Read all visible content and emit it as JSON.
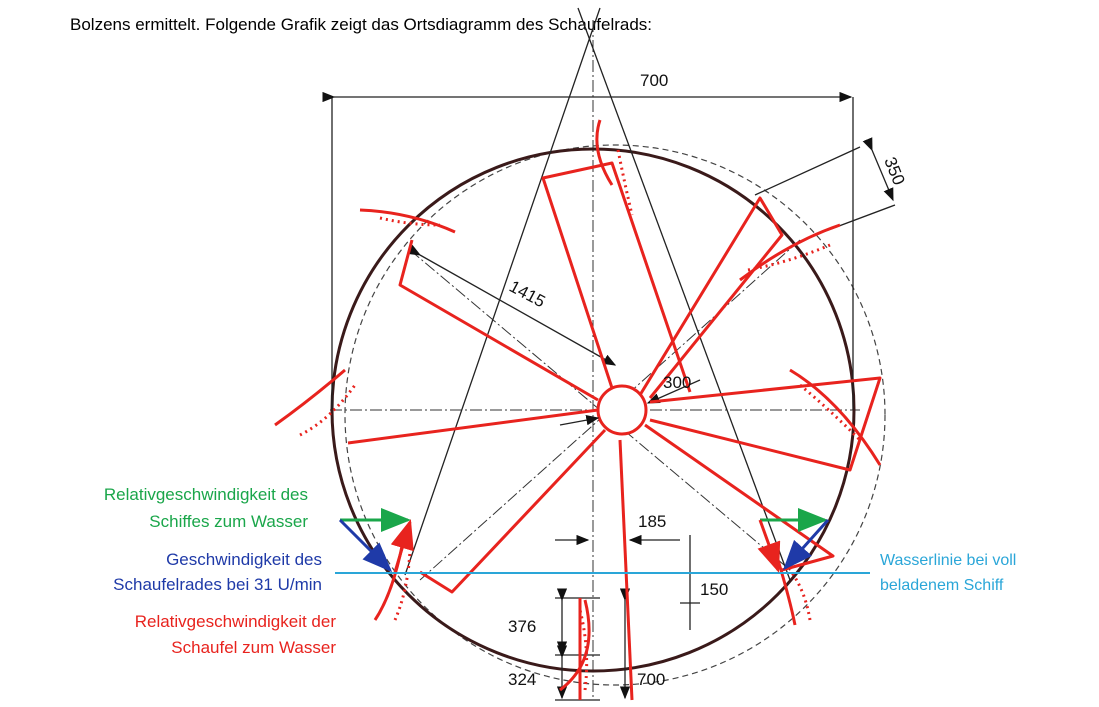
{
  "caption": "Bolzens ermittelt. Folgende Grafik zeigt das Ortsdiagramm des Schaufelrads:",
  "dimensions": {
    "width_top": "700",
    "paddle": "350",
    "radius": "1415",
    "hub": "300",
    "offset": "185",
    "waterline": "150",
    "lower": "376",
    "bottom": "324",
    "depth": "700"
  },
  "labels": {
    "ship_velocity": [
      "Relativgeschwindigkeit des",
      "Schiffes zum Wasser"
    ],
    "wheel_velocity": [
      "Geschwindigkeit des",
      "Schaufelrades bei 31 U/min"
    ],
    "paddle_velocity": [
      "Relativgeschwindigkeit der",
      "Schaufel zum Wasser"
    ],
    "waterline": [
      "Wasserlinie bei voll",
      "beladenem Schiff"
    ]
  }
}
